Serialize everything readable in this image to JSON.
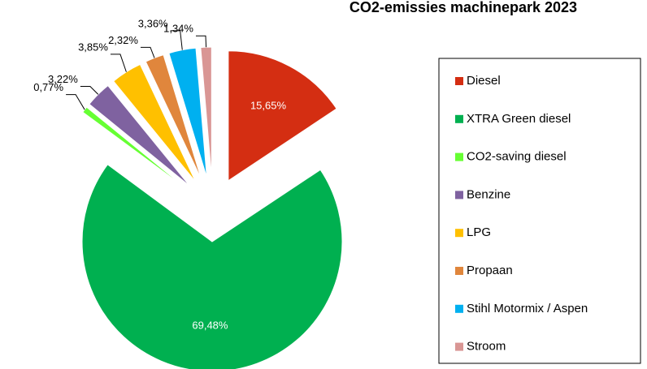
{
  "chart_data": {
    "type": "pie",
    "title": "CO2-emissies machinepark 2023",
    "categories": [
      "Diesel",
      "XTRA Green diesel",
      "CO2-saving diesel",
      "Benzine",
      "LPG",
      "Propaan",
      "Stihl Motormix / Aspen",
      "Stroom"
    ],
    "values": [
      15.65,
      69.48,
      0.77,
      3.22,
      3.85,
      2.32,
      3.36,
      1.34
    ],
    "value_labels": [
      "15,65%",
      "69,48%",
      "0,77%",
      "3,22%",
      "3,85%",
      "2,32%",
      "3,36%",
      "1,34%"
    ],
    "colors": [
      "#d42e12",
      "#00b050",
      "#66ff33",
      "#7f62a0",
      "#ffc000",
      "#e0863c",
      "#00b0f0",
      "#d99694"
    ],
    "legend": "right"
  }
}
